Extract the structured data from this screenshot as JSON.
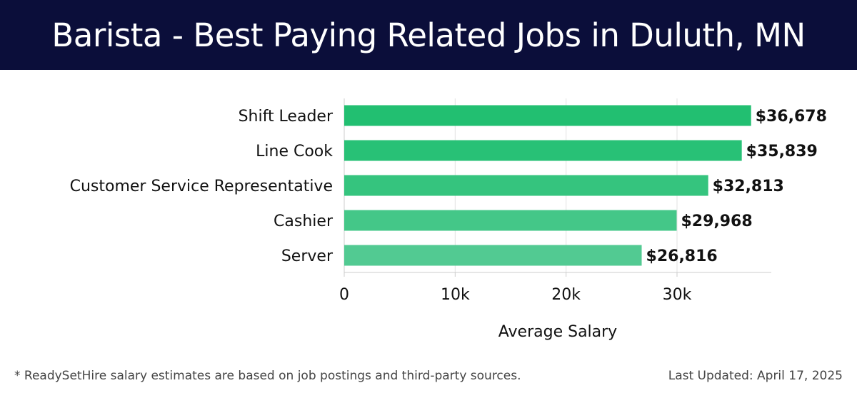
{
  "header": {
    "title": "Barista - Best Paying Related Jobs in Duluth, MN"
  },
  "chart_data": {
    "type": "bar",
    "orientation": "horizontal",
    "categories": [
      "Shift Leader",
      "Line Cook",
      "Customer Service Representative",
      "Cashier",
      "Server"
    ],
    "values": [
      36678,
      35839,
      32813,
      29968,
      26816
    ],
    "value_labels": [
      "$36,678",
      "$35,839",
      "$32,813",
      "$29,968",
      "$26,816"
    ],
    "xlabel": "Average Salary",
    "ylabel": "",
    "xlim": [
      0,
      38500
    ],
    "xticks": [
      0,
      10000,
      20000,
      30000
    ],
    "xtick_labels": [
      "0",
      "10k",
      "20k",
      "30k"
    ],
    "grid": true,
    "bar_colors": [
      "#22bf71",
      "#28c176",
      "#35c47e",
      "#44c788",
      "#52ca92"
    ]
  },
  "footer": {
    "note": "* ReadySetHire salary estimates are based on job postings and third-party sources.",
    "updated": "Last Updated: April 17, 2025"
  }
}
